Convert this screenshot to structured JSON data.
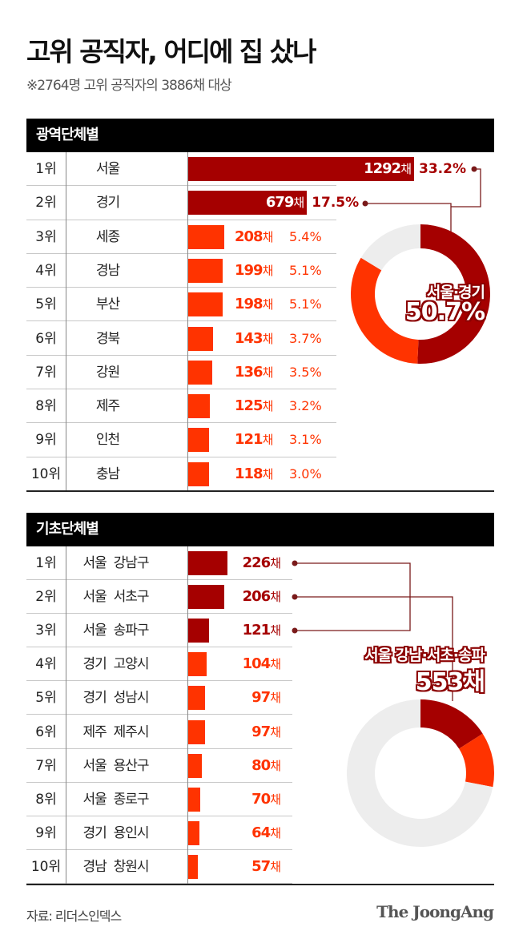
{
  "header": {
    "title": "고위 공직자, 어디에 집 샀나",
    "subtitle": "※2764명 고위 공직자의 3886채 대상"
  },
  "colors": {
    "dark_red": "#a50000",
    "red": "#ff3300",
    "gray": "#ededed",
    "connector": "#7a1a1a"
  },
  "chart_data": [
    {
      "type": "bar",
      "title": "광역단체별",
      "unit": "채",
      "ranks": [
        "1위",
        "2위",
        "3위",
        "4위",
        "5위",
        "6위",
        "7위",
        "8위",
        "9위",
        "10위"
      ],
      "categories": [
        "서울",
        "경기",
        "세종",
        "경남",
        "부산",
        "경북",
        "강원",
        "제주",
        "인천",
        "충남"
      ],
      "values": [
        1292,
        679,
        208,
        199,
        198,
        143,
        136,
        125,
        121,
        118
      ],
      "value_labels": [
        "1292",
        "679",
        "208",
        "199",
        "198",
        "143",
        "136",
        "125",
        "121",
        "118"
      ],
      "percents": [
        "33.2%",
        "17.5%",
        "5.4%",
        "5.1%",
        "5.1%",
        "3.7%",
        "3.5%",
        "3.2%",
        "3.1%",
        "3.0%"
      ],
      "highlight": [
        true,
        true,
        false,
        false,
        false,
        false,
        false,
        false,
        false,
        false
      ],
      "donut": {
        "label": "서울·경기",
        "value_label": "50.7%",
        "segments": [
          0.507,
          0.33,
          0.163
        ]
      }
    },
    {
      "type": "bar",
      "title": "기초단체별",
      "unit": "채",
      "ranks": [
        "1위",
        "2위",
        "3위",
        "4위",
        "5위",
        "6위",
        "7위",
        "8위",
        "9위",
        "10위"
      ],
      "regions": [
        "서울",
        "서울",
        "서울",
        "경기",
        "경기",
        "제주",
        "서울",
        "서울",
        "경기",
        "경남"
      ],
      "categories": [
        "강남구",
        "서초구",
        "송파구",
        "고양시",
        "성남시",
        "제주시",
        "용산구",
        "종로구",
        "용인시",
        "창원시"
      ],
      "values": [
        226,
        206,
        121,
        104,
        97,
        97,
        80,
        70,
        64,
        57
      ],
      "value_labels": [
        "226",
        "206",
        "121",
        "104",
        "97",
        "97",
        "80",
        "70",
        "64",
        "57"
      ],
      "highlight": [
        true,
        true,
        true,
        false,
        false,
        false,
        false,
        false,
        false,
        false
      ],
      "donut": {
        "label": "서울 강남·서초·송파",
        "value_label": "553채",
        "segments": [
          0.16,
          0.12,
          0.72
        ]
      }
    }
  ],
  "footer": {
    "source": "자료: 리더스인덱스",
    "logo": "The JoongAng"
  }
}
